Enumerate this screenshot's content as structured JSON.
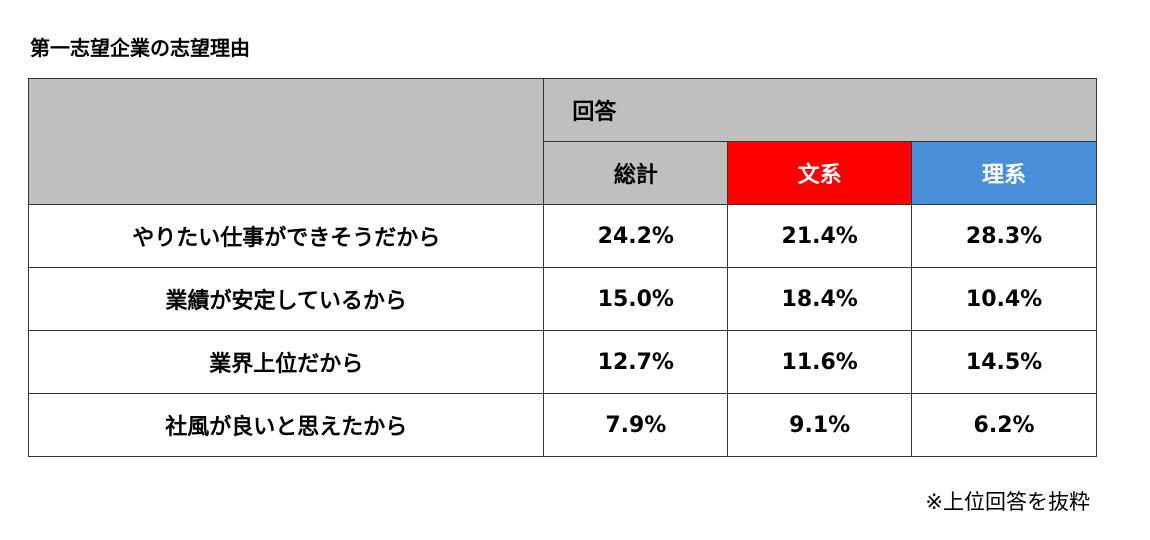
{
  "title": "第一志望企業の志望理由",
  "footnote": "※上位回答を抜粋",
  "colors": {
    "header_gray": "#bfbfbf",
    "bunkei": "#ff0000",
    "rikei": "#4a90d9"
  },
  "chart_data": {
    "type": "table",
    "group_header": "回答",
    "columns": [
      "総計",
      "文系",
      "理系"
    ],
    "rows": [
      {
        "label": "やりたい仕事ができそうだから",
        "values": [
          "24.2%",
          "21.4%",
          "28.3%"
        ]
      },
      {
        "label": "業績が安定しているから",
        "values": [
          "15.0%",
          "18.4%",
          "10.4%"
        ]
      },
      {
        "label": "業界上位だから",
        "values": [
          "12.7%",
          "11.6%",
          "14.5%"
        ]
      },
      {
        "label": "社風が良いと思えたから",
        "values": [
          "7.9%",
          "9.1%",
          "6.2%"
        ]
      }
    ]
  }
}
